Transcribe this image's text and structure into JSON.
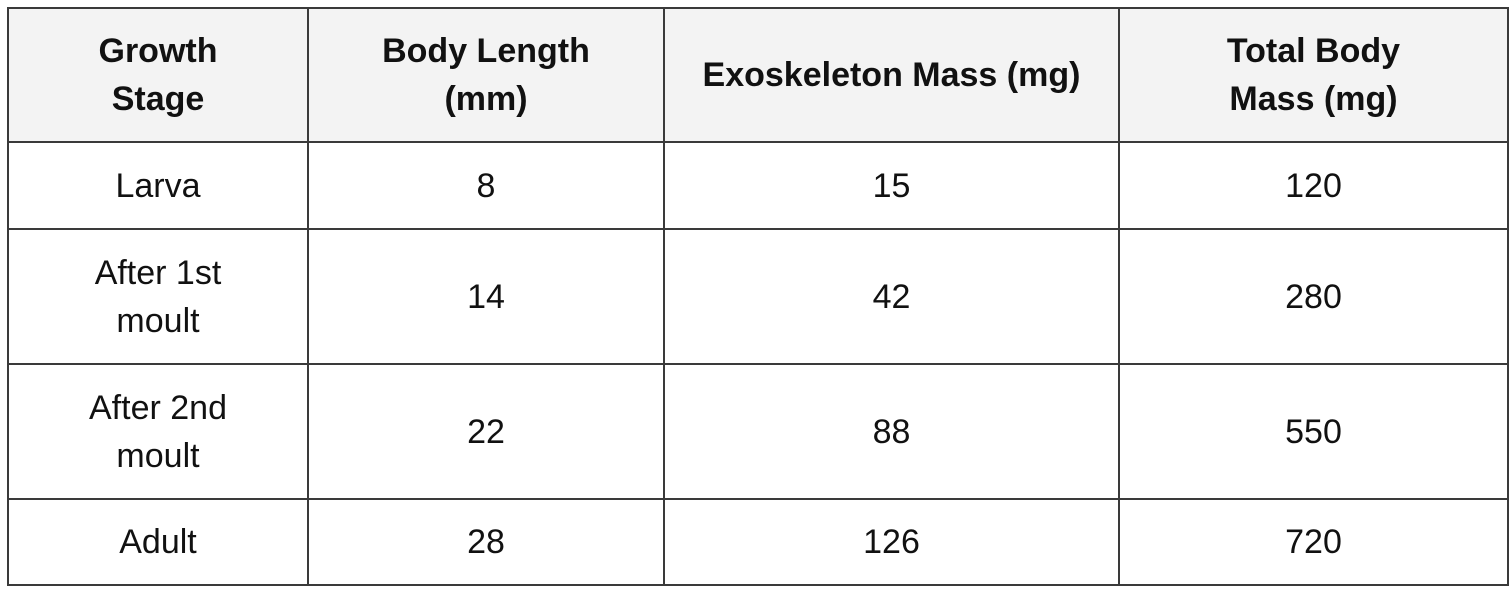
{
  "table": {
    "header": [
      "Growth Stage",
      "Body Length (mm)",
      "Exoskeleton Mass (mg)",
      "Total Body Mass (mg)"
    ],
    "rows": [
      [
        "Larva",
        8,
        15,
        120
      ],
      [
        "After 1st moult",
        14,
        42,
        280
      ],
      [
        "After 2nd moult",
        22,
        88,
        550
      ],
      [
        "Adult",
        28,
        126,
        720
      ]
    ]
  }
}
